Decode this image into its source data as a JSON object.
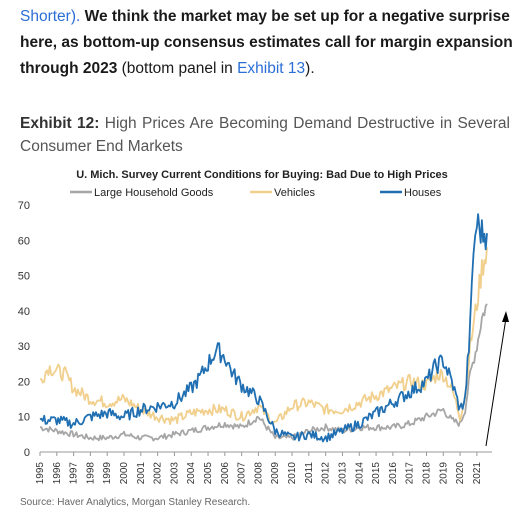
{
  "paragraph": {
    "line1_normal": "Shorter).",
    "line1_bold": " We think the market may be set up for a negative surprise",
    "line2_bold": "here, as bottom-up consensus estimates call for margin expansion",
    "line3_bold": "through 2023",
    "line3_normal_a": " (bottom panel in ",
    "line3_link": "Exhibit 13",
    "line3_normal_b": ")."
  },
  "exhibit": {
    "label": "Exhibit 12:",
    "title": " High Prices Are Becoming Demand Destructive in Several Consumer End Markets"
  },
  "source": "Source: Haver Analytics, Morgan Stanley Research.",
  "chart_data": {
    "type": "line",
    "title": "U. Mich. Survey Current Conditions for Buying: Bad Due to High Prices",
    "xlabel": "",
    "ylabel": "",
    "ylim": [
      0,
      70
    ],
    "yticks": [
      "0",
      "10",
      "20",
      "30",
      "40",
      "50",
      "60",
      "70"
    ],
    "xlim": [
      1995,
      2021.9
    ],
    "xticks": [
      "1995",
      "1996",
      "1997",
      "1998",
      "1999",
      "2000",
      "2001",
      "2002",
      "2003",
      "2004",
      "2005",
      "2006",
      "2007",
      "2008",
      "2009",
      "2010",
      "2011",
      "2012",
      "2013",
      "2014",
      "2015",
      "2016",
      "2017",
      "2018",
      "2019",
      "2020",
      "2021"
    ],
    "grid": false,
    "legend_position": "top",
    "annotation": "upward arrow",
    "colors": {
      "large_household_goods": "#a6a6a6",
      "vehicles": "#f1cf8c",
      "houses": "#1f6fb2",
      "arrow": "#000000"
    },
    "series": [
      {
        "name": "Large Household Goods",
        "color": "#a6a6a6",
        "x": [
          1995,
          1996,
          1997,
          1998,
          1999,
          2000,
          2001,
          2002,
          2003,
          2004,
          2005,
          2006,
          2007,
          2008,
          2009,
          2010,
          2011,
          2012,
          2013,
          2014,
          2015,
          2016,
          2017,
          2018,
          2019,
          2019.5,
          2020,
          2020.3,
          2020.6,
          2021,
          2021.3,
          2021.6
        ],
        "y": [
          7,
          6,
          5,
          4,
          4,
          5,
          4,
          4,
          5,
          6,
          7,
          8,
          7,
          10,
          4,
          4,
          6,
          7,
          6,
          7,
          7,
          7,
          8,
          10,
          12,
          9,
          8,
          12,
          22,
          30,
          38,
          42
        ]
      },
      {
        "name": "Vehicles",
        "color": "#f1cf8c",
        "x": [
          1995,
          1995.5,
          1996,
          1996.5,
          1997,
          1998,
          1999,
          2000,
          2001,
          2002,
          2003,
          2004,
          2005,
          2006,
          2007,
          2008,
          2009,
          2010,
          2011,
          2012,
          2013,
          2014,
          2015,
          2016,
          2017,
          2018,
          2018.7,
          2019,
          2019.5,
          2020,
          2020.3,
          2020.6,
          2021,
          2021.3,
          2021.6
        ],
        "y": [
          20,
          24,
          23,
          22,
          18,
          15,
          14,
          15,
          12,
          10,
          9,
          11,
          12,
          12,
          10,
          13,
          8,
          13,
          14,
          12,
          12,
          14,
          16,
          18,
          20,
          19,
          22,
          22,
          18,
          10,
          16,
          30,
          42,
          52,
          58
        ]
      },
      {
        "name": "Houses",
        "color": "#1f6fb2",
        "x": [
          1995,
          1996,
          1997,
          1998,
          1999,
          2000,
          2001,
          2002,
          2003,
          2004,
          2004.5,
          2005,
          2005.5,
          2006,
          2006.5,
          2007,
          2008,
          2009,
          2010,
          2011,
          2012,
          2013,
          2014,
          2015,
          2016,
          2017,
          2018,
          2018.5,
          2019,
          2019.5,
          2020,
          2020.3,
          2020.6,
          2020.8,
          2021,
          2021.3,
          2021.6
        ],
        "y": [
          9,
          9,
          8,
          10,
          11,
          10,
          12,
          13,
          14,
          18,
          21,
          25,
          29,
          27,
          22,
          19,
          15,
          6,
          4,
          5,
          4,
          6,
          8,
          11,
          14,
          17,
          20,
          24,
          26,
          20,
          12,
          15,
          35,
          57,
          65,
          62,
          62
        ]
      }
    ]
  }
}
